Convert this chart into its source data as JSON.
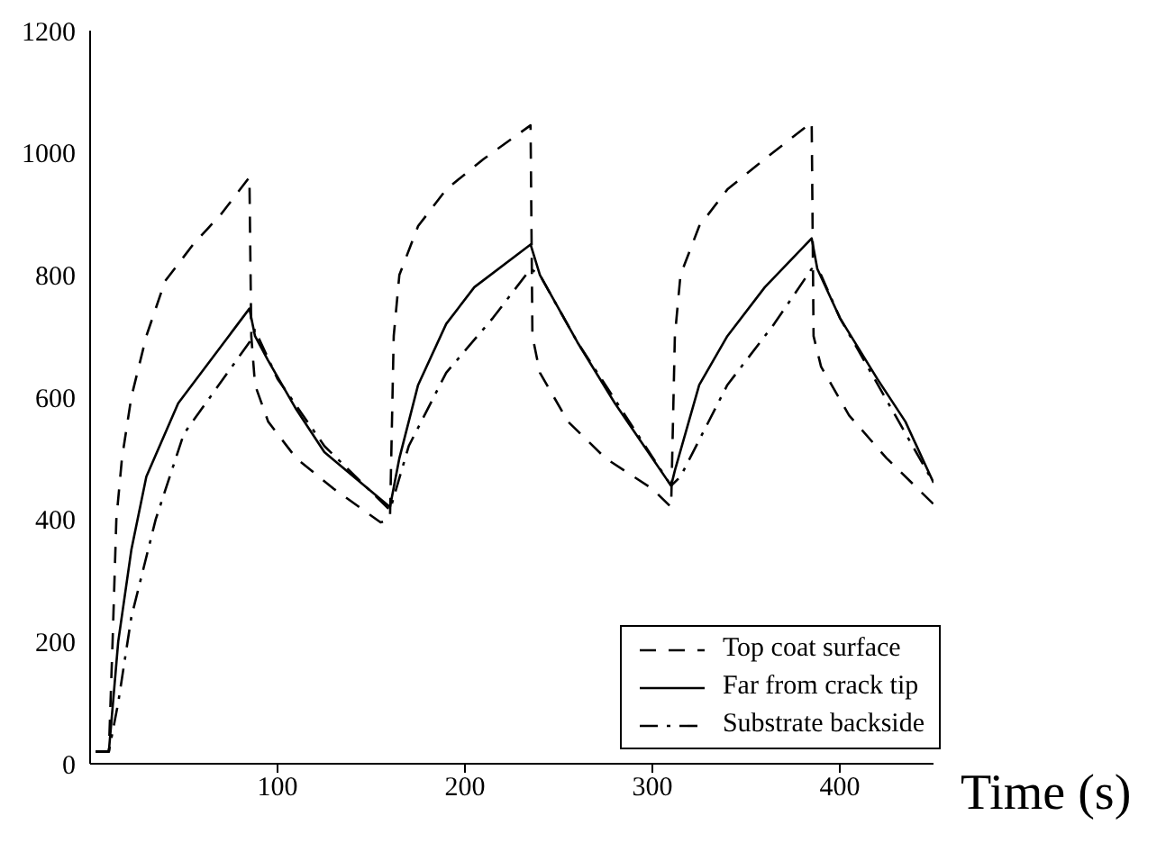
{
  "chart_data": {
    "type": "line",
    "xlabel": "Time (s)",
    "xlim": [
      0,
      450
    ],
    "xticks": [
      100,
      200,
      300,
      400
    ],
    "ylim": [
      0,
      1200
    ],
    "yticks": [
      0,
      200,
      400,
      600,
      800,
      1000,
      1200
    ],
    "grid": false,
    "legend": "bottom right",
    "marker": "none",
    "series": [
      {
        "name": "Top coat surface",
        "color": "#000000",
        "line_style": "dashed",
        "x": [
          3,
          10,
          12,
          14,
          17,
          22,
          30,
          40,
          55,
          70,
          85,
          86,
          88,
          95,
          110,
          130,
          155,
          160,
          162,
          165,
          175,
          190,
          210,
          235,
          236,
          240,
          255,
          275,
          300,
          310,
          312,
          315,
          325,
          340,
          360,
          385,
          386,
          390,
          405,
          425,
          450
        ],
        "values": [
          20,
          20,
          200,
          400,
          500,
          600,
          700,
          790,
          850,
          900,
          960,
          700,
          620,
          560,
          500,
          450,
          395,
          400,
          700,
          800,
          880,
          940,
          990,
          1045,
          700,
          640,
          560,
          500,
          450,
          420,
          700,
          800,
          880,
          940,
          990,
          1050,
          700,
          650,
          570,
          500,
          425
        ]
      },
      {
        "name": "Far from crack tip",
        "color": "#000000",
        "line_style": "solid",
        "x": [
          3,
          10,
          15,
          22,
          30,
          47,
          85,
          88,
          95,
          110,
          125,
          160,
          165,
          175,
          190,
          205,
          235,
          240,
          260,
          280,
          310,
          312,
          325,
          340,
          360,
          385,
          388,
          400,
          420,
          435,
          450
        ],
        "values": [
          20,
          20,
          200,
          350,
          470,
          590,
          745,
          700,
          660,
          580,
          510,
          420,
          500,
          620,
          720,
          780,
          850,
          800,
          690,
          590,
          455,
          480,
          620,
          700,
          780,
          860,
          810,
          730,
          630,
          560,
          460
        ]
      },
      {
        "name": "Substrate backside",
        "color": "#000000",
        "line_style": "dashdot",
        "x": [
          3,
          10,
          15,
          22,
          35,
          50,
          85,
          88,
          100,
          125,
          160,
          170,
          190,
          215,
          235,
          240,
          260,
          310,
          315,
          340,
          365,
          385,
          390,
          400,
          450
        ],
        "values": [
          20,
          20,
          100,
          240,
          400,
          540,
          690,
          710,
          630,
          520,
          415,
          520,
          640,
          730,
          810,
          800,
          690,
          455,
          470,
          620,
          720,
          810,
          800,
          730,
          460
        ]
      }
    ]
  }
}
